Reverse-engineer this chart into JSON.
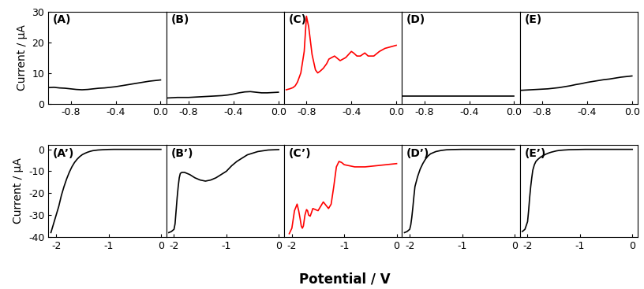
{
  "top_row": {
    "panels": [
      "A",
      "B",
      "C",
      "D",
      "E"
    ],
    "xlim": [
      -1.0,
      0.05
    ],
    "xticks": [
      -0.8,
      -0.4,
      0.0
    ],
    "ylim": [
      0,
      30
    ],
    "yticks": [
      0,
      10,
      20,
      30
    ],
    "curves": {
      "A": {
        "color": "black",
        "x": [
          -1.0,
          -0.95,
          -0.9,
          -0.85,
          -0.8,
          -0.75,
          -0.7,
          -0.65,
          -0.6,
          -0.55,
          -0.5,
          -0.45,
          -0.4,
          -0.35,
          -0.3,
          -0.25,
          -0.2,
          -0.15,
          -0.1,
          -0.05,
          0.0
        ],
        "y": [
          5.2,
          5.3,
          5.1,
          5.0,
          4.8,
          4.6,
          4.5,
          4.6,
          4.8,
          5.0,
          5.1,
          5.3,
          5.5,
          5.8,
          6.1,
          6.4,
          6.7,
          7.0,
          7.3,
          7.5,
          7.7
        ]
      },
      "B": {
        "color": "black",
        "x": [
          -1.0,
          -0.95,
          -0.9,
          -0.85,
          -0.8,
          -0.75,
          -0.7,
          -0.65,
          -0.6,
          -0.55,
          -0.5,
          -0.45,
          -0.4,
          -0.35,
          -0.3,
          -0.25,
          -0.2,
          -0.15,
          -0.1,
          -0.05,
          0.0
        ],
        "y": [
          1.8,
          1.9,
          2.0,
          2.0,
          2.0,
          2.1,
          2.2,
          2.3,
          2.4,
          2.5,
          2.6,
          2.8,
          3.1,
          3.5,
          3.8,
          3.9,
          3.7,
          3.5,
          3.5,
          3.6,
          3.7
        ]
      },
      "C": {
        "color": "red",
        "x": [
          -0.98,
          -0.95,
          -0.92,
          -0.9,
          -0.88,
          -0.85,
          -0.82,
          -0.8,
          -0.78,
          -0.75,
          -0.72,
          -0.7,
          -0.68,
          -0.65,
          -0.62,
          -0.6,
          -0.55,
          -0.5,
          -0.45,
          -0.4,
          -0.38,
          -0.35,
          -0.32,
          -0.3,
          -0.28,
          -0.25,
          -0.2,
          -0.15,
          -0.1,
          -0.05,
          0.0
        ],
        "y": [
          4.5,
          4.8,
          5.2,
          5.8,
          7.0,
          10.0,
          17.0,
          28.5,
          25.0,
          16.0,
          11.0,
          10.0,
          10.5,
          11.5,
          13.0,
          14.5,
          15.5,
          14.0,
          15.0,
          17.0,
          16.5,
          15.5,
          15.5,
          16.0,
          16.5,
          15.5,
          15.5,
          17.0,
          18.0,
          18.5,
          19.0
        ]
      },
      "D": {
        "color": "black",
        "x": [
          -1.0,
          -0.5,
          0.0
        ],
        "y": [
          2.5,
          2.5,
          2.5
        ]
      },
      "E": {
        "color": "black",
        "x": [
          -1.0,
          -0.95,
          -0.9,
          -0.85,
          -0.8,
          -0.75,
          -0.7,
          -0.65,
          -0.6,
          -0.55,
          -0.5,
          -0.45,
          -0.4,
          -0.35,
          -0.3,
          -0.25,
          -0.2,
          -0.15,
          -0.1,
          -0.05,
          0.0
        ],
        "y": [
          4.3,
          4.4,
          4.5,
          4.6,
          4.7,
          4.8,
          5.0,
          5.2,
          5.5,
          5.8,
          6.2,
          6.5,
          6.9,
          7.2,
          7.5,
          7.8,
          8.0,
          8.3,
          8.6,
          8.8,
          9.0
        ]
      }
    }
  },
  "bottom_row": {
    "panels": [
      "A’",
      "B’",
      "C’",
      "D’",
      "E’"
    ],
    "xlim": [
      -2.15,
      0.1
    ],
    "xticks": [
      -2,
      -1,
      0
    ],
    "ylim": [
      -40,
      2
    ],
    "yticks": [
      -40,
      -30,
      -20,
      -10,
      0
    ],
    "curves": {
      "A’": {
        "color": "black",
        "x": [
          -2.1,
          -2.0,
          -1.95,
          -1.9,
          -1.85,
          -1.8,
          -1.75,
          -1.7,
          -1.65,
          -1.6,
          -1.55,
          -1.5,
          -1.45,
          -1.4,
          -1.35,
          -1.3,
          -1.2,
          -1.1,
          -1.0,
          -0.9,
          -0.8,
          -0.6,
          -0.4,
          -0.2,
          0.0
        ],
        "y": [
          -38.0,
          -30.0,
          -26.0,
          -21.0,
          -17.0,
          -13.5,
          -10.5,
          -8.0,
          -6.0,
          -4.5,
          -3.3,
          -2.4,
          -1.8,
          -1.3,
          -0.9,
          -0.6,
          -0.3,
          -0.15,
          -0.05,
          0.0,
          0.0,
          0.0,
          0.0,
          0.0,
          0.0
        ]
      },
      "B’": {
        "color": "black",
        "x": [
          -2.1,
          -2.05,
          -2.0,
          -1.98,
          -1.96,
          -1.94,
          -1.92,
          -1.9,
          -1.88,
          -1.85,
          -1.8,
          -1.7,
          -1.6,
          -1.5,
          -1.4,
          -1.3,
          -1.2,
          -1.1,
          -1.0,
          -0.9,
          -0.8,
          -0.6,
          -0.4,
          -0.2,
          0.0
        ],
        "y": [
          -38.0,
          -37.5,
          -36.5,
          -34.0,
          -28.0,
          -22.0,
          -17.0,
          -13.0,
          -11.0,
          -10.5,
          -10.5,
          -11.5,
          -13.0,
          -14.0,
          -14.5,
          -14.0,
          -13.0,
          -11.5,
          -10.0,
          -7.5,
          -5.5,
          -2.5,
          -1.0,
          -0.3,
          -0.1
        ]
      },
      "C’": {
        "color": "red",
        "x": [
          -2.05,
          -2.0,
          -1.95,
          -1.9,
          -1.87,
          -1.84,
          -1.82,
          -1.8,
          -1.78,
          -1.75,
          -1.72,
          -1.7,
          -1.68,
          -1.65,
          -1.62,
          -1.6,
          -1.55,
          -1.5,
          -1.45,
          -1.4,
          -1.35,
          -1.3,
          -1.25,
          -1.2,
          -1.15,
          -1.1,
          -1.05,
          -1.0,
          -0.9,
          -0.8,
          -0.6,
          -0.4,
          -0.2,
          0.0
        ],
        "y": [
          -38.5,
          -36.0,
          -28.0,
          -25.0,
          -28.0,
          -32.0,
          -35.0,
          -36.0,
          -35.0,
          -30.0,
          -27.5,
          -28.0,
          -30.0,
          -30.5,
          -28.5,
          -27.0,
          -27.5,
          -28.0,
          -26.0,
          -24.0,
          -25.5,
          -27.0,
          -25.0,
          -17.0,
          -8.0,
          -5.5,
          -6.0,
          -7.0,
          -7.5,
          -8.0,
          -8.0,
          -7.5,
          -7.0,
          -6.5
        ]
      },
      "D’": {
        "color": "black",
        "x": [
          -2.1,
          -2.05,
          -2.0,
          -1.98,
          -1.96,
          -1.94,
          -1.92,
          -1.9,
          -1.85,
          -1.8,
          -1.75,
          -1.7,
          -1.65,
          -1.6,
          -1.5,
          -1.4,
          -1.3,
          -1.2,
          -1.1,
          -1.0,
          -0.9,
          -0.8,
          -0.6,
          -0.4,
          -0.2,
          0.0
        ],
        "y": [
          -38.0,
          -37.5,
          -36.5,
          -34.5,
          -31.0,
          -26.5,
          -21.5,
          -17.0,
          -12.5,
          -9.0,
          -6.5,
          -4.5,
          -3.0,
          -2.0,
          -1.0,
          -0.5,
          -0.2,
          -0.1,
          -0.05,
          0.0,
          0.0,
          0.0,
          0.0,
          0.0,
          0.0,
          0.0
        ]
      },
      "E’": {
        "color": "black",
        "x": [
          -2.1,
          -2.05,
          -2.0,
          -1.98,
          -1.96,
          -1.94,
          -1.92,
          -1.9,
          -1.87,
          -1.84,
          -1.8,
          -1.75,
          -1.7,
          -1.65,
          -1.6,
          -1.55,
          -1.5,
          -1.45,
          -1.4,
          -1.3,
          -1.2,
          -1.1,
          -1.0,
          -0.9,
          -0.8,
          -0.6,
          -0.4,
          -0.2,
          0.0
        ],
        "y": [
          -37.5,
          -36.5,
          -33.0,
          -28.0,
          -22.0,
          -17.0,
          -13.0,
          -9.5,
          -7.0,
          -5.5,
          -4.5,
          -3.5,
          -2.8,
          -2.2,
          -1.7,
          -1.3,
          -1.0,
          -0.7,
          -0.5,
          -0.3,
          -0.15,
          -0.1,
          -0.05,
          0.0,
          0.0,
          0.0,
          0.0,
          0.0,
          0.0
        ]
      }
    }
  },
  "ylabel": "Current / µA",
  "xlabel": "Potential / V",
  "figure_bg": "white",
  "axes_bg": "white",
  "label_fontsize": 10,
  "tick_fontsize": 9,
  "panel_label_fontsize": 10,
  "linewidth": 1.2
}
